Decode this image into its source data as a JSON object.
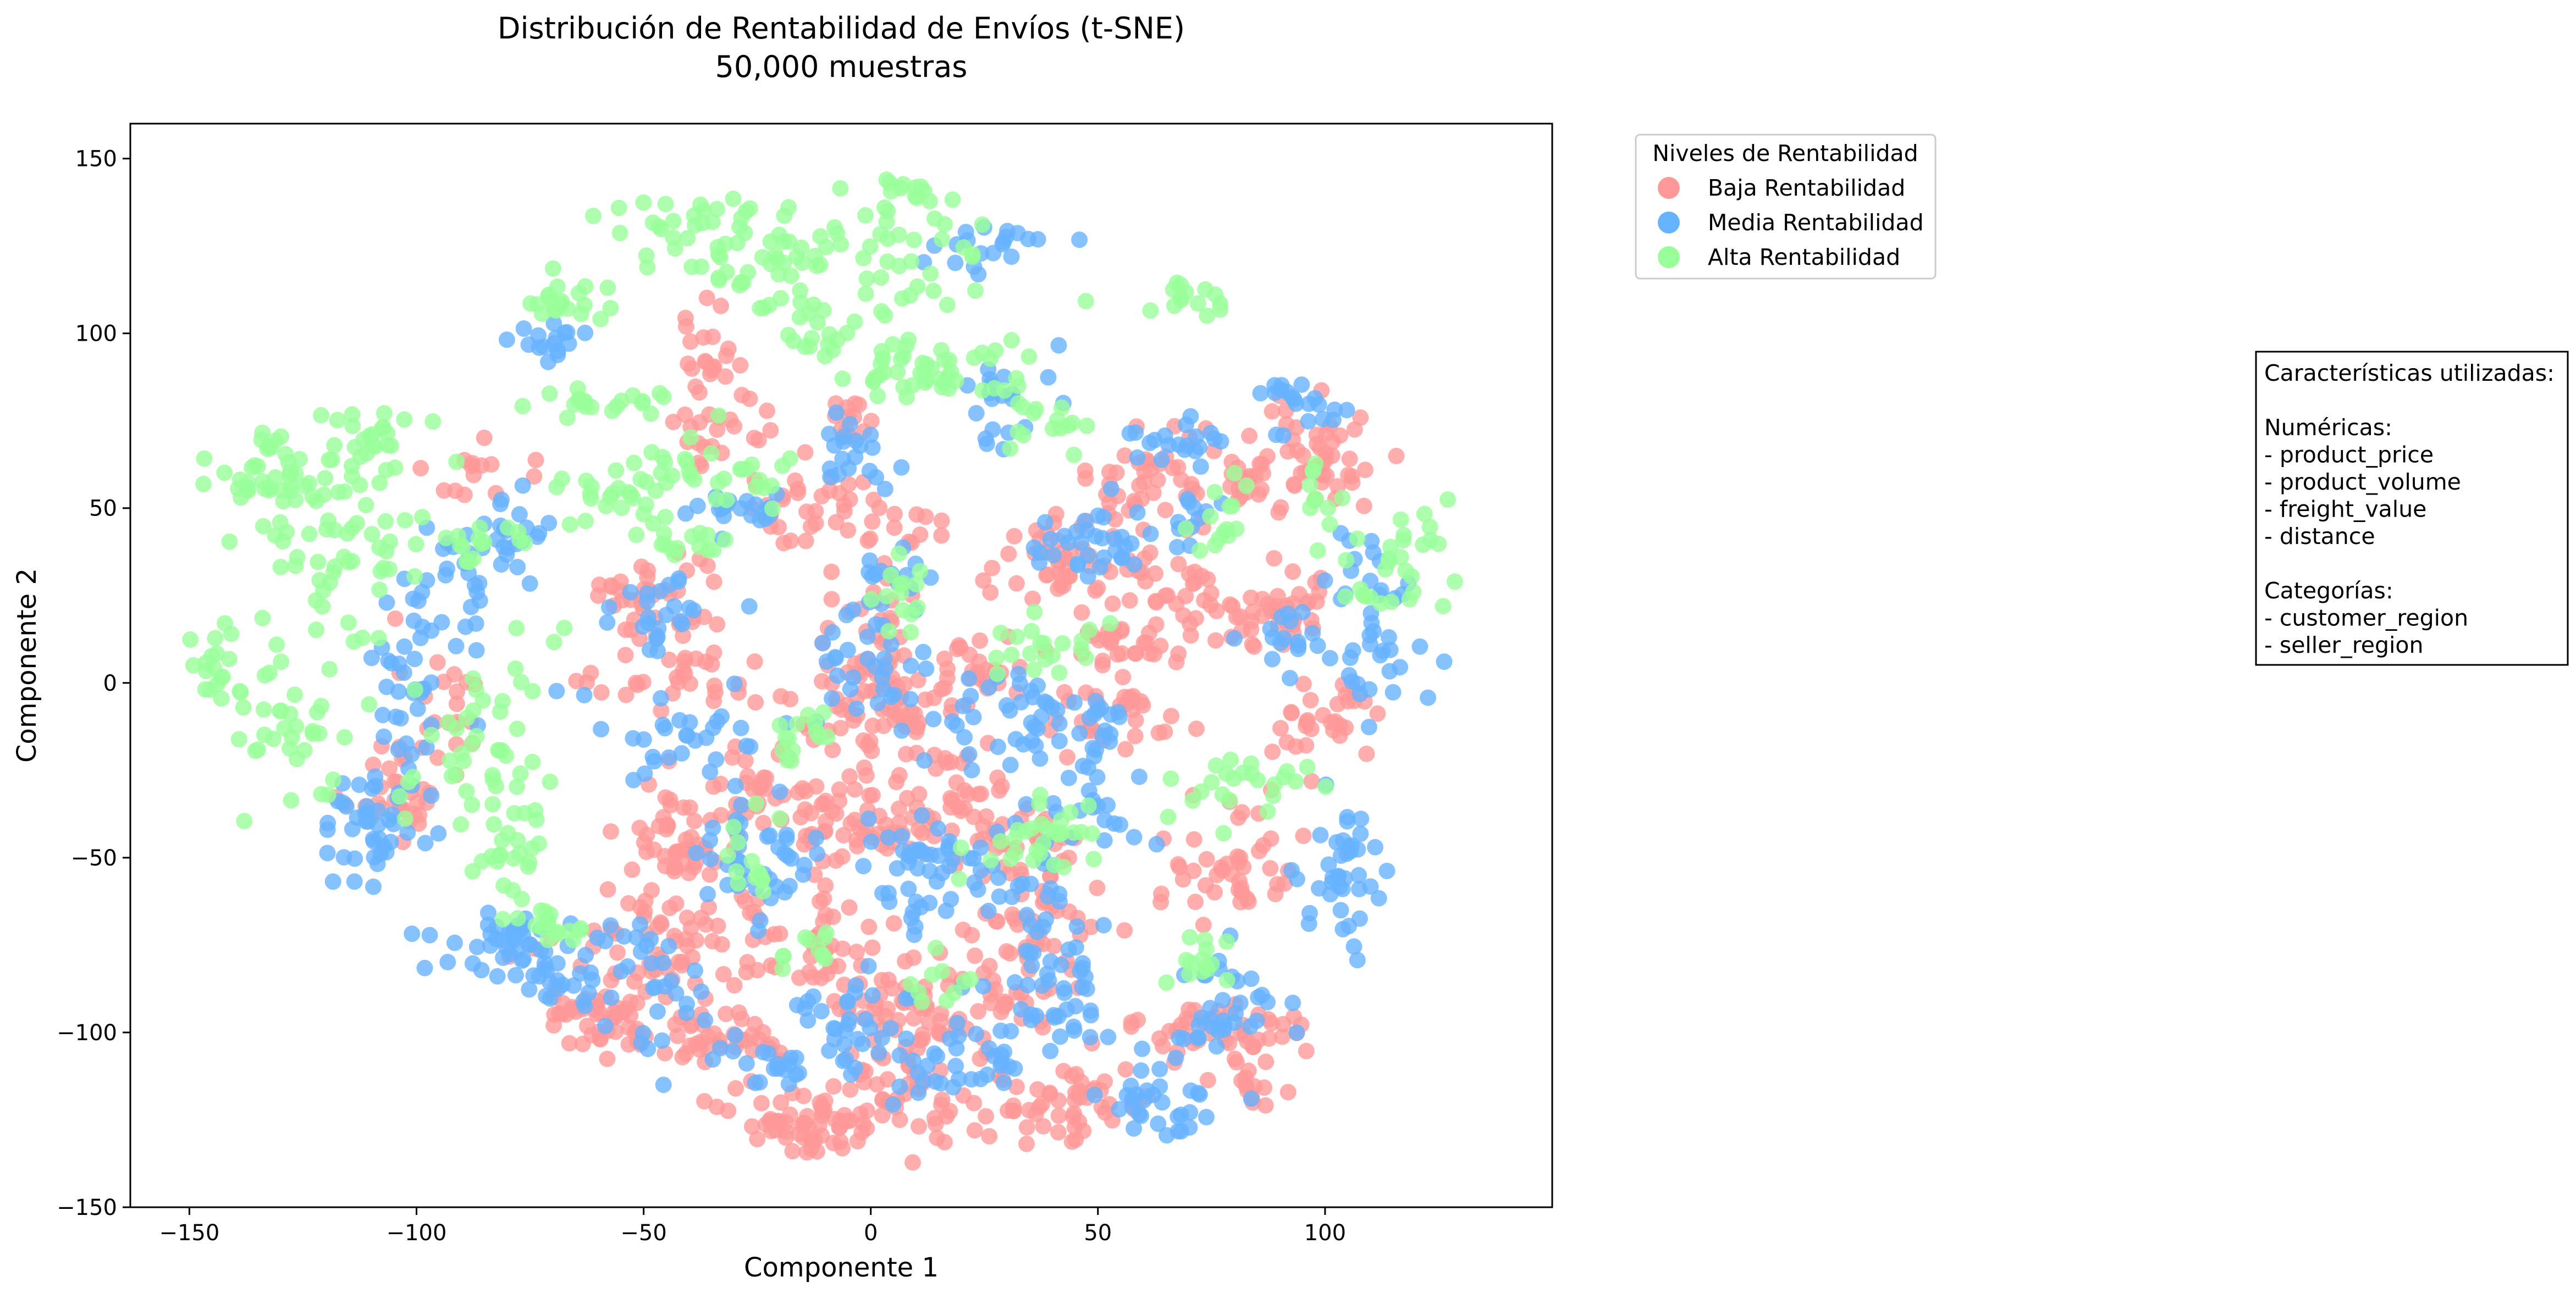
{
  "chart_data": {
    "type": "scatter",
    "title": "Distribución de Rentabilidad de Envíos (t-SNE)",
    "subtitle": "50,000 muestras",
    "xlabel": "Componente 1",
    "ylabel": "Componente 2",
    "xlim": [
      -163,
      150
    ],
    "ylim": [
      -150,
      160
    ],
    "x_ticks": [
      -150,
      -100,
      -50,
      0,
      50,
      100
    ],
    "y_ticks": [
      -150,
      -100,
      -50,
      0,
      50,
      100,
      150
    ],
    "grid": false,
    "legend": {
      "title": "Niveles de Rentabilidad",
      "placement": "outside-top-right"
    },
    "series": [
      {
        "name": "Baja Rentabilidad",
        "color": "#ff9999",
        "clusters": [
          [
            -105,
            -30,
            6,
            8,
            30
          ],
          [
            -95,
            -5,
            4,
            12,
            20
          ],
          [
            -85,
            60,
            6,
            4,
            14
          ],
          [
            -60,
            -95,
            8,
            6,
            50
          ],
          [
            -40,
            -75,
            14,
            8,
            60
          ],
          [
            -48,
            25,
            8,
            8,
            40
          ],
          [
            -40,
            0,
            10,
            5,
            30
          ],
          [
            -35,
            95,
            4,
            8,
            24
          ],
          [
            -32,
            70,
            8,
            4,
            20
          ],
          [
            -25,
            -30,
            8,
            10,
            40
          ],
          [
            -45,
            -50,
            8,
            8,
            44
          ],
          [
            -30,
            -100,
            8,
            5,
            36
          ],
          [
            -10,
            -80,
            10,
            10,
            40
          ],
          [
            -15,
            -125,
            8,
            5,
            50
          ],
          [
            5,
            -120,
            10,
            8,
            50
          ],
          [
            10,
            -95,
            8,
            6,
            44
          ],
          [
            -10,
            50,
            12,
            5,
            44
          ],
          [
            0,
            10,
            6,
            12,
            44
          ],
          [
            0,
            -40,
            8,
            6,
            56
          ],
          [
            15,
            -20,
            8,
            12,
            36
          ],
          [
            25,
            5,
            6,
            4,
            24
          ],
          [
            30,
            -45,
            8,
            6,
            36
          ],
          [
            30,
            -90,
            10,
            10,
            40
          ],
          [
            45,
            -120,
            10,
            6,
            50
          ],
          [
            35,
            -70,
            8,
            6,
            30
          ],
          [
            45,
            35,
            10,
            8,
            60
          ],
          [
            55,
            10,
            6,
            4,
            24
          ],
          [
            55,
            -10,
            8,
            6,
            30
          ],
          [
            65,
            60,
            8,
            6,
            40
          ],
          [
            75,
            -100,
            10,
            6,
            44
          ],
          [
            70,
            25,
            6,
            6,
            24
          ],
          [
            80,
            -50,
            8,
            8,
            44
          ],
          [
            90,
            20,
            6,
            6,
            40
          ],
          [
            100,
            65,
            6,
            8,
            40
          ],
          [
            100,
            -10,
            6,
            6,
            30
          ],
          [
            85,
            55,
            5,
            5,
            20
          ],
          [
            85,
            -115,
            4,
            4,
            14
          ],
          [
            0,
            -10,
            10,
            6,
            40
          ],
          [
            -5,
            75,
            4,
            3,
            14
          ]
        ]
      },
      {
        "name": "Media Rentabilidad",
        "color": "#66b3ff",
        "clusters": [
          [
            -110,
            -40,
            6,
            8,
            40
          ],
          [
            -100,
            0,
            5,
            15,
            40
          ],
          [
            -90,
            30,
            4,
            8,
            24
          ],
          [
            -80,
            40,
            4,
            6,
            20
          ],
          [
            -80,
            -75,
            8,
            5,
            44
          ],
          [
            -70,
            98,
            5,
            3,
            16
          ],
          [
            -50,
            -85,
            8,
            10,
            36
          ],
          [
            -48,
            20,
            8,
            6,
            24
          ],
          [
            -42,
            -15,
            10,
            8,
            30
          ],
          [
            -25,
            -50,
            8,
            8,
            40
          ],
          [
            -30,
            50,
            8,
            4,
            20
          ],
          [
            -20,
            -110,
            8,
            5,
            24
          ],
          [
            -5,
            -95,
            8,
            8,
            30
          ],
          [
            -5,
            65,
            5,
            6,
            20
          ],
          [
            0,
            5,
            6,
            10,
            30
          ],
          [
            5,
            28,
            5,
            5,
            14
          ],
          [
            10,
            -55,
            8,
            10,
            40
          ],
          [
            20,
            -110,
            8,
            6,
            30
          ],
          [
            25,
            125,
            8,
            4,
            20
          ],
          [
            30,
            -60,
            8,
            8,
            30
          ],
          [
            40,
            -90,
            8,
            8,
            44
          ],
          [
            45,
            40,
            8,
            6,
            30
          ],
          [
            45,
            -15,
            10,
            6,
            30
          ],
          [
            50,
            -35,
            6,
            5,
            20
          ],
          [
            65,
            68,
            6,
            4,
            20
          ],
          [
            65,
            -120,
            8,
            5,
            30
          ],
          [
            75,
            -95,
            8,
            8,
            36
          ],
          [
            70,
            45,
            5,
            4,
            14
          ],
          [
            105,
            -55,
            5,
            12,
            40
          ],
          [
            95,
            80,
            6,
            5,
            20
          ],
          [
            115,
            5,
            6,
            8,
            24
          ],
          [
            110,
            30,
            5,
            5,
            16
          ],
          [
            30,
            -5,
            10,
            8,
            30
          ],
          [
            30,
            80,
            6,
            6,
            20
          ],
          [
            90,
            10,
            5,
            5,
            16
          ],
          [
            -70,
            -85,
            4,
            3,
            14
          ]
        ]
      },
      {
        "name": "Alta Rentabilidad",
        "color": "#99ff99",
        "clusters": [
          [
            -145,
            5,
            4,
            5,
            20
          ],
          [
            -130,
            -15,
            6,
            10,
            30
          ],
          [
            -130,
            60,
            8,
            6,
            40
          ],
          [
            -115,
            40,
            10,
            15,
            60
          ],
          [
            -110,
            70,
            6,
            5,
            24
          ],
          [
            -85,
            -15,
            8,
            15,
            40
          ],
          [
            -80,
            -45,
            5,
            10,
            30
          ],
          [
            -70,
            110,
            5,
            4,
            20
          ],
          [
            -60,
            80,
            8,
            3,
            20
          ],
          [
            -55,
            55,
            8,
            5,
            24
          ],
          [
            -40,
            130,
            10,
            6,
            36
          ],
          [
            -35,
            60,
            10,
            6,
            30
          ],
          [
            -20,
            120,
            10,
            8,
            40
          ],
          [
            -10,
            100,
            3,
            6,
            14
          ],
          [
            -25,
            -50,
            4,
            6,
            14
          ],
          [
            10,
            120,
            10,
            8,
            30
          ],
          [
            10,
            140,
            6,
            3,
            14
          ],
          [
            5,
            90,
            6,
            6,
            24
          ],
          [
            25,
            90,
            8,
            5,
            24
          ],
          [
            35,
            -45,
            8,
            6,
            30
          ],
          [
            40,
            10,
            6,
            5,
            20
          ],
          [
            75,
            45,
            4,
            5,
            14
          ],
          [
            80,
            -30,
            8,
            6,
            24
          ],
          [
            115,
            35,
            6,
            8,
            30
          ],
          [
            -85,
            40,
            4,
            4,
            14
          ],
          [
            -70,
            -70,
            4,
            3,
            14
          ],
          [
            5,
            25,
            4,
            5,
            14
          ],
          [
            -40,
            40,
            4,
            4,
            14
          ],
          [
            -15,
            -15,
            4,
            4,
            14
          ],
          [
            70,
            110,
            5,
            3,
            14
          ],
          [
            100,
            55,
            3,
            4,
            10
          ],
          [
            70,
            -80,
            5,
            4,
            14
          ],
          [
            -15,
            -75,
            4,
            3,
            10
          ],
          [
            15,
            -85,
            4,
            4,
            10
          ],
          [
            40,
            75,
            5,
            4,
            14
          ]
        ]
      }
    ],
    "annotation": {
      "lines": [
        "Características utilizadas:",
        "",
        "Numéricas:",
        "- product_price",
        "- product_volume",
        "- freight_value",
        "- distance",
        "",
        "Categorías:",
        "- customer_region",
        "- seller_region"
      ]
    }
  }
}
